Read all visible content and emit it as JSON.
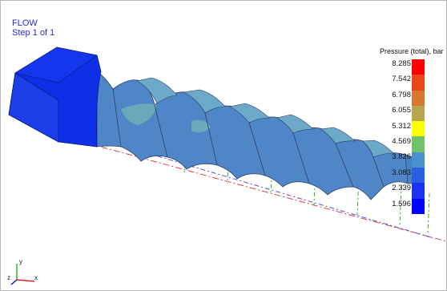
{
  "header": {
    "title": "FLOW",
    "step": "Step 1 of 1"
  },
  "legend": {
    "title": "Pressure (total), bar",
    "labels": [
      "8.285",
      "7.542",
      "6.798",
      "6.055",
      "5.312",
      "4.569",
      "3.826",
      "3.083",
      "2.339",
      "1.596"
    ],
    "colors": [
      "#ff0000",
      "#e64818",
      "#d87830",
      "#b9a54d",
      "#ffff00",
      "#6fc26a",
      "#4a90cc",
      "#2c5ee0",
      "#1a34ee",
      "#0000ff"
    ]
  },
  "triad": {
    "x_axis": "x",
    "y_axis": "y",
    "z_axis": "z",
    "colors": {
      "x": "#e00000",
      "y": "#00a000",
      "z": "#0000e0"
    }
  },
  "model": {
    "colors": {
      "inlet": "#0f2fe6",
      "body": "#4f86c8",
      "highlight": "#6fb0b8",
      "edge": "#2c3f66"
    }
  }
}
